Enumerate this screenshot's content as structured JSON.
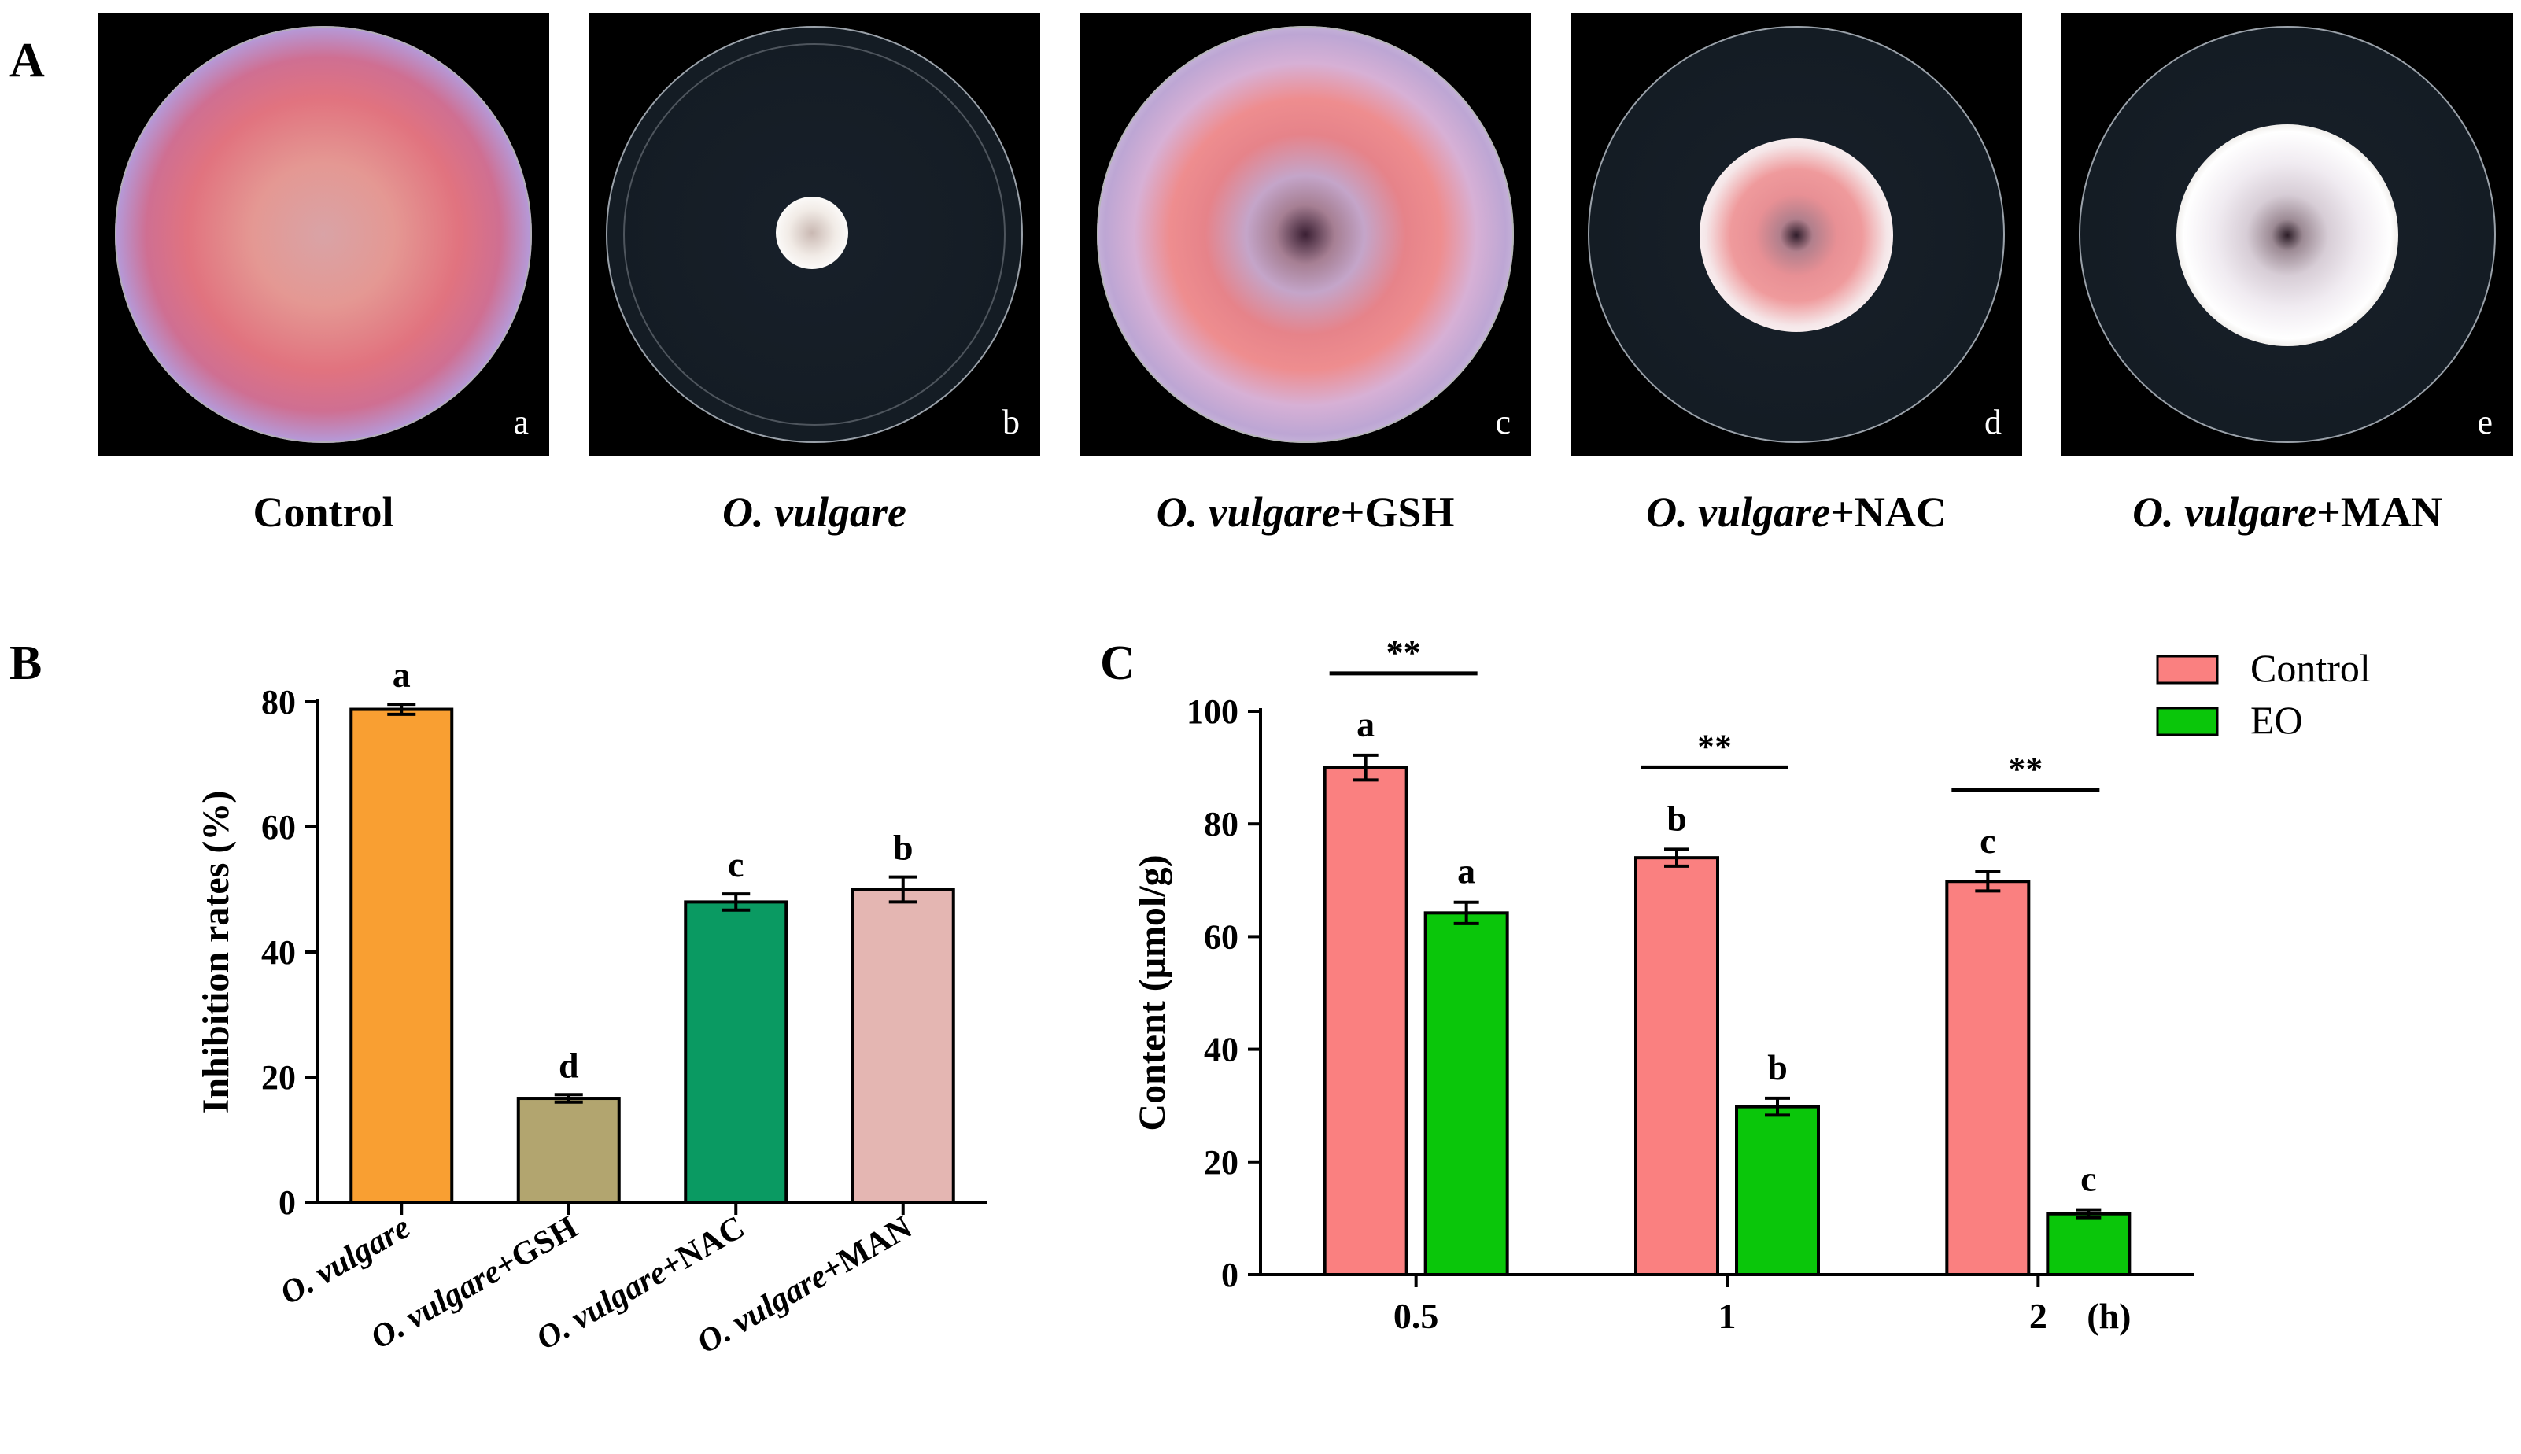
{
  "panel_labels": {
    "a": "A",
    "b": "B",
    "c": "C"
  },
  "photos": [
    {
      "tag": "a",
      "caption_italic": "",
      "caption_rest": "Control"
    },
    {
      "tag": "b",
      "caption_italic": "O. vulgare",
      "caption_rest": ""
    },
    {
      "tag": "c",
      "caption_italic": "O. vulgare",
      "caption_rest": "+GSH"
    },
    {
      "tag": "d",
      "caption_italic": "O. vulgare",
      "caption_rest": "+NAC"
    },
    {
      "tag": "e",
      "caption_italic": "O. vulgare",
      "caption_rest": "+MAN"
    }
  ],
  "chart_data": [
    {
      "panel": "B",
      "type": "bar",
      "title": "",
      "xlabel": "",
      "ylabel": "Inhibition rates (%)",
      "ylim": [
        0,
        80
      ],
      "yticks": [
        0,
        20,
        40,
        60,
        80
      ],
      "categories": [
        {
          "italic": "O. vulgare",
          "rest": ""
        },
        {
          "italic": "O. vulgare",
          "rest": "+GSH"
        },
        {
          "italic": "O. vulgare",
          "rest": "+NAC"
        },
        {
          "italic": "O. vulgare",
          "rest": "+MAN"
        }
      ],
      "values": [
        78.8,
        16.6,
        48.0,
        50.0
      ],
      "errors": [
        0.8,
        0.6,
        1.3,
        2.0
      ],
      "letters": [
        "a",
        "d",
        "c",
        "b"
      ],
      "colors": [
        "#f99f32",
        "#b2a56f",
        "#0a9a62",
        "#e4b6b2"
      ]
    },
    {
      "panel": "C",
      "type": "bar",
      "title": "",
      "xlabel": "(h)",
      "ylabel": "Content (μmol/g)",
      "ylim": [
        0,
        100
      ],
      "yticks": [
        0,
        20,
        40,
        60,
        80,
        100
      ],
      "categories": [
        "0.5",
        "1",
        "2"
      ],
      "series": [
        {
          "name": "Control",
          "color": "#fa8080",
          "values": [
            90.0,
            74.0,
            69.8
          ],
          "errors": [
            2.2,
            1.5,
            1.7
          ],
          "letters": [
            "a",
            "b",
            "c"
          ]
        },
        {
          "name": "EO",
          "color": "#0ac60a",
          "values": [
            64.2,
            29.8,
            10.8
          ],
          "errors": [
            1.9,
            1.5,
            0.7
          ],
          "letters": [
            "a",
            "b",
            "c"
          ]
        }
      ],
      "significance": [
        "**",
        "**",
        "**"
      ],
      "legend_position": "top-right"
    }
  ]
}
